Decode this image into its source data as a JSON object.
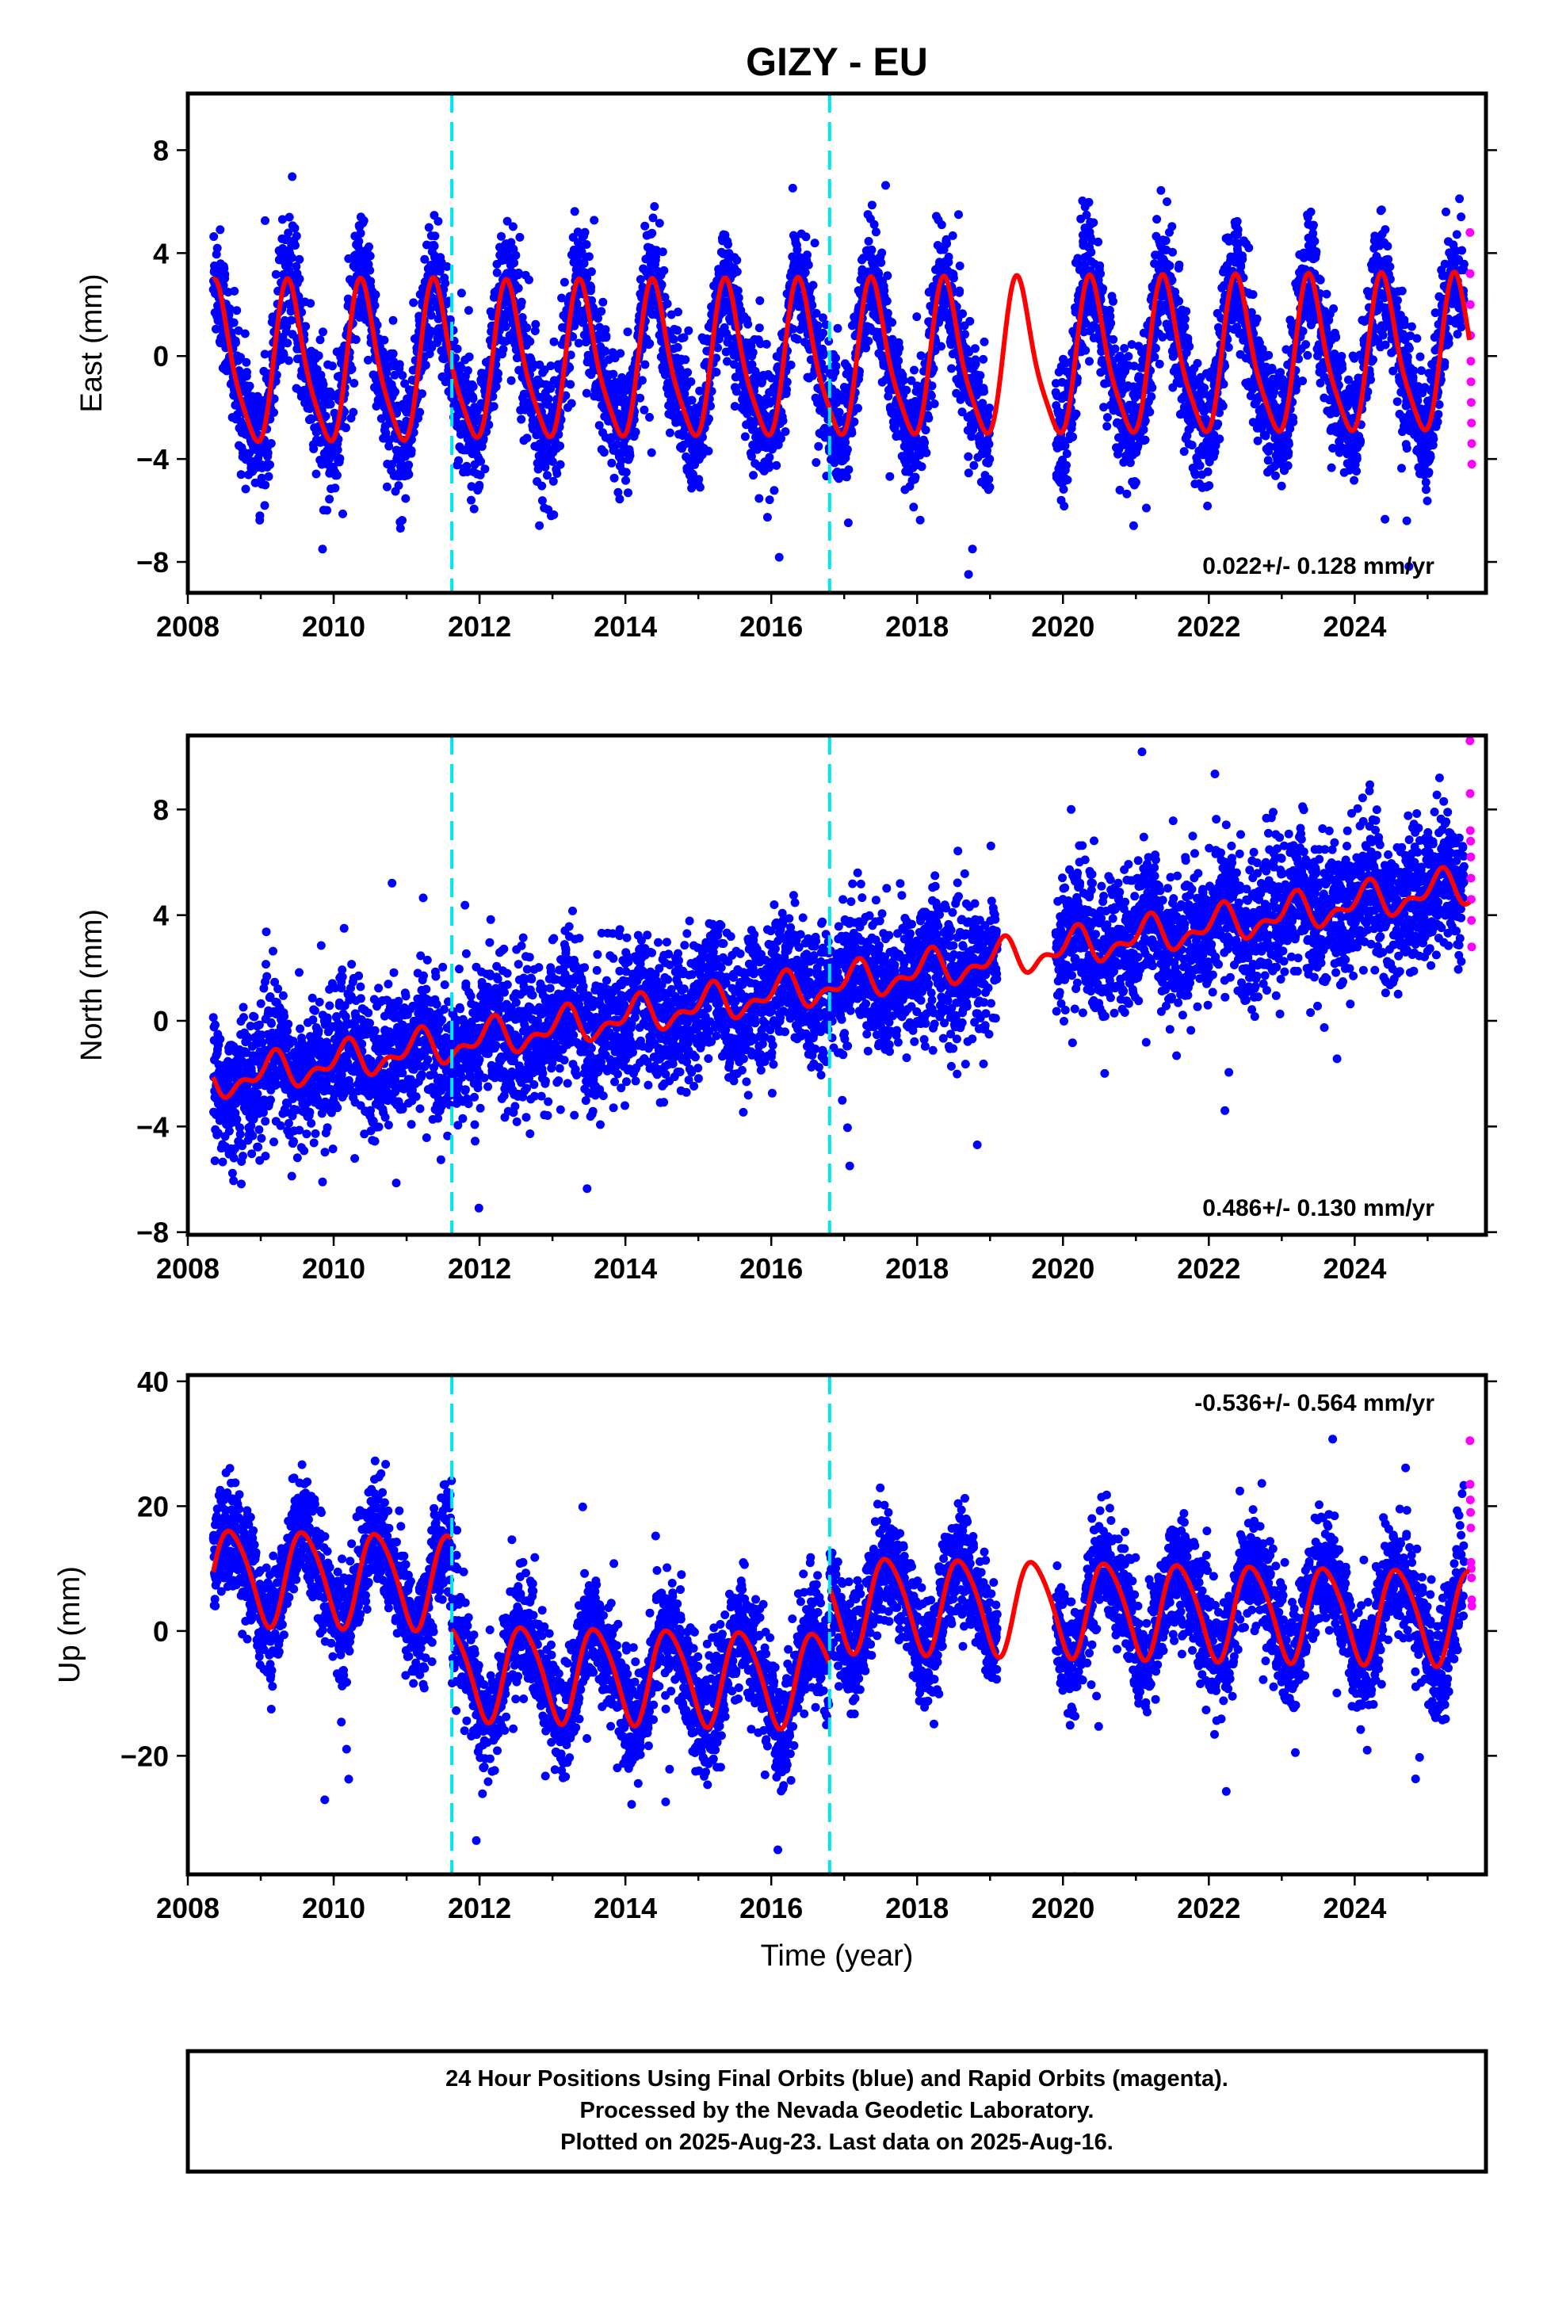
{
  "title": "GIZY - EU",
  "xlabel": "Time (year)",
  "footer": {
    "line1": "24 Hour Positions Using Final Orbits (blue) and Rapid Orbits (magenta).",
    "line2": "Processed by the Nevada Geodetic Laboratory.",
    "line3": "Plotted on 2025-Aug-23. Last data on 2025-Aug-16."
  },
  "colors": {
    "final_orbits": "#0000ff",
    "rapid_orbits": "#ff00ff",
    "model": "#ff0000",
    "steps": "#00e5ee"
  },
  "chart_data": [
    {
      "type": "scatter",
      "component": "east",
      "ylabel": "East (mm)",
      "xlim": [
        2008.0,
        2025.8
      ],
      "ylim": [
        -9.2,
        10.2
      ],
      "x_ticks": [
        2008,
        2010,
        2012,
        2014,
        2016,
        2018,
        2020,
        2022,
        2024
      ],
      "y_ticks": [
        -8,
        -4,
        0,
        4,
        8
      ],
      "rate_label": "0.022+/- 0.128 mm/yr",
      "rate_position": "bottom-right",
      "steps": [
        2011.62,
        2016.8
      ],
      "series": [
        {
          "name": "Final Orbits",
          "color": "#0000ff",
          "date_range": [
            2008.35,
            2025.5
          ],
          "trend_mm_per_yr": 0.022,
          "annual_amplitude_mm": 3.0,
          "noise_mm": 1.2
        },
        {
          "name": "Rapid Orbits",
          "color": "#ff00ff",
          "date_range": [
            2025.5,
            2025.62
          ],
          "values_mm": [
            4.8,
            3.2,
            2.0,
            0.8,
            -0.2,
            -1.0,
            -1.8,
            -2.6,
            -3.4,
            -4.2
          ]
        }
      ],
      "model": {
        "color": "#ff0000",
        "description": "trend + annual + semiannual"
      }
    },
    {
      "type": "scatter",
      "component": "north",
      "ylabel": "North (mm)",
      "xlim": [
        2008.0,
        2025.8
      ],
      "ylim": [
        -8.1,
        10.8
      ],
      "x_ticks": [
        2008,
        2010,
        2012,
        2014,
        2016,
        2018,
        2020,
        2022,
        2024
      ],
      "y_ticks": [
        -8,
        -4,
        0,
        4,
        8
      ],
      "rate_label": "0.486+/- 0.130 mm/yr",
      "rate_position": "bottom-right",
      "steps": [
        2011.62,
        2016.8
      ],
      "series": [
        {
          "name": "Final Orbits",
          "color": "#0000ff",
          "date_range": [
            2008.35,
            2025.5
          ],
          "trend_mm_per_yr": 0.486,
          "start_mm": -2.4,
          "end_mm": 4.8,
          "noise_mm": 1.3
        },
        {
          "name": "Rapid Orbits",
          "color": "#ff00ff",
          "date_range": [
            2025.5,
            2025.62
          ],
          "values_mm": [
            10.6,
            8.6,
            7.2,
            6.8,
            6.2,
            5.4,
            4.6,
            3.8,
            2.8
          ]
        }
      ],
      "model": {
        "color": "#ff0000",
        "description": "trend + annual + semiannual"
      }
    },
    {
      "type": "scatter",
      "component": "up",
      "ylabel": "Up (mm)",
      "xlim": [
        2008.0,
        2025.8
      ],
      "ylim": [
        -39,
        41
      ],
      "x_ticks": [
        2008,
        2010,
        2012,
        2014,
        2016,
        2018,
        2020,
        2022,
        2024
      ],
      "y_ticks": [
        -20,
        0,
        20,
        40
      ],
      "rate_label": "-0.536+/- 0.564 mm/yr",
      "rate_position": "top-right",
      "steps": [
        2011.62,
        2016.8
      ],
      "series": [
        {
          "name": "Final Orbits",
          "color": "#0000ff",
          "date_range": [
            2008.35,
            2025.5
          ],
          "offsets_mm": [
            {
              "from": 2008.35,
              "to": 2011.62,
              "mean": 8
            },
            {
              "from": 2011.62,
              "to": 2016.8,
              "mean": -7
            },
            {
              "from": 2016.8,
              "to": 2025.6,
              "mean": 3
            }
          ],
          "annual_amplitude_mm": 7.5,
          "noise_mm": 4.5
        },
        {
          "name": "Rapid Orbits",
          "color": "#ff00ff",
          "date_range": [
            2025.5,
            2025.62
          ],
          "values_mm": [
            30.5,
            23.5,
            21.0,
            19.0,
            16.5,
            11.0,
            10.0,
            8.5,
            5.0,
            4.0
          ]
        }
      ],
      "model": {
        "color": "#ff0000",
        "description": "trend + annual + semiannual + offsets"
      }
    }
  ]
}
